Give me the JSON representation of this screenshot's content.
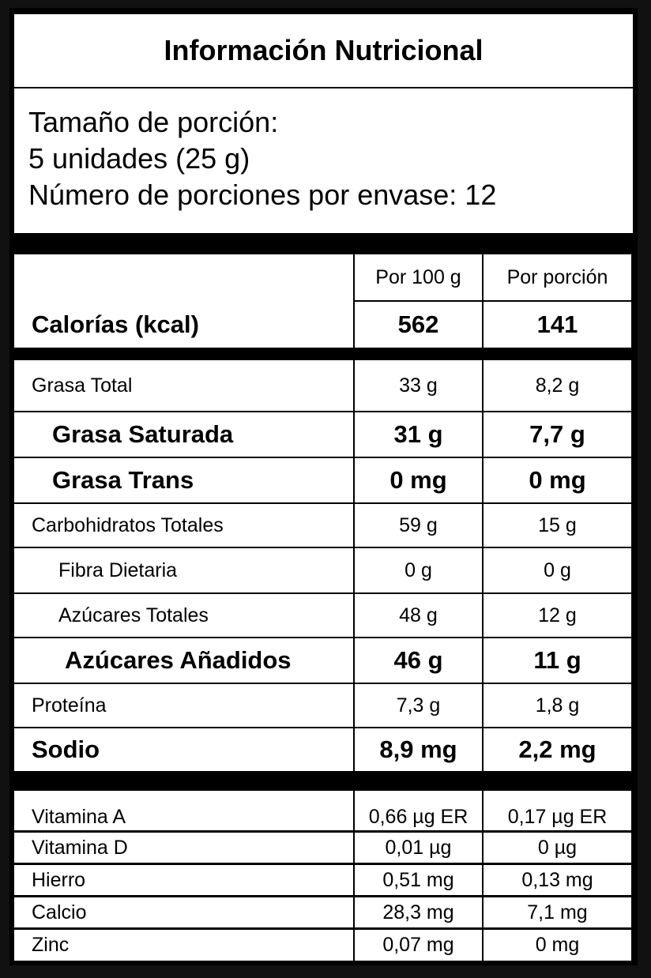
{
  "title": "Información Nutricional",
  "serving": {
    "line1": "Tamaño de porción:",
    "line2": "5 unidades (25 g)",
    "line3": "Número de porciones por envase: 12"
  },
  "header": {
    "col2": "Por 100 g",
    "col3": "Por porción"
  },
  "calories": {
    "label": "Calorías (kcal)",
    "per100": "562",
    "perServing": "141"
  },
  "nutrients": [
    {
      "label": "Grasa Total",
      "per100": "33 g",
      "perServing": "8,2 g"
    },
    {
      "label": "Grasa Saturada",
      "per100": "31 g",
      "perServing": "7,7 g"
    },
    {
      "label": "Grasa Trans",
      "per100": "0 mg",
      "perServing": "0 mg"
    },
    {
      "label": "Carbohidratos Totales",
      "per100": "59 g",
      "perServing": "15 g"
    },
    {
      "label": "Fibra Dietaria",
      "per100": "0 g",
      "perServing": "0 g"
    },
    {
      "label": "Azúcares Totales",
      "per100": "48 g",
      "perServing": "12 g"
    },
    {
      "label": "Azúcares Añadidos",
      "per100": "46 g",
      "perServing": "11 g"
    },
    {
      "label": "Proteína",
      "per100": "7,3 g",
      "perServing": "1,8 g"
    },
    {
      "label": "Sodio",
      "per100": "8,9 mg",
      "perServing": "2,2 mg"
    }
  ],
  "micronutrients": [
    {
      "label": "Vitamina A",
      "per100": "0,66 µg ER",
      "perServing": "0,17 µg ER"
    },
    {
      "label": "Vitamina D",
      "per100": "0,01 µg",
      "perServing": "0 µg"
    },
    {
      "label": "Hierro",
      "per100": "0,51 mg",
      "perServing": "0,13 mg"
    },
    {
      "label": "Calcio",
      "per100": "28,3 mg",
      "perServing": "7,1 mg"
    },
    {
      "label": "Zinc",
      "per100": "0,07 mg",
      "perServing": "0 mg"
    }
  ]
}
